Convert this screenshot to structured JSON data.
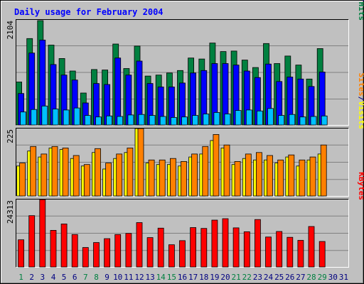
{
  "chart_data": {
    "type": "bar",
    "title": "Daily usage for February 2004",
    "x": [
      "1",
      "2",
      "3",
      "4",
      "5",
      "6",
      "7",
      "8",
      "9",
      "10",
      "11",
      "12",
      "13",
      "14",
      "15",
      "16",
      "17",
      "18",
      "19",
      "20",
      "21",
      "22",
      "23",
      "24",
      "25",
      "26",
      "27",
      "28",
      "29",
      "30",
      "31"
    ],
    "x_colors": [
      "#008040",
      "#000080",
      "#000080",
      "#000080",
      "#000080",
      "#000080",
      "#008040",
      "#008040",
      "#000080",
      "#000080",
      "#000080",
      "#000080",
      "#000080",
      "#008040",
      "#008040",
      "#000080",
      "#000080",
      "#000080",
      "#000080",
      "#000080",
      "#008040",
      "#008040",
      "#000080",
      "#000080",
      "#000080",
      "#000080",
      "#000080",
      "#008040",
      "#008040",
      "#000080",
      "#000080"
    ],
    "panels": [
      {
        "name": "hits-files-pages",
        "ymax": 2104,
        "ymax_label": "2104",
        "legend": [
          {
            "text": "Pages",
            "color": "#00c0ff"
          },
          {
            "text": "/",
            "color": "#000080"
          },
          {
            "text": "Files",
            "color": "#0000ff"
          },
          {
            "text": "/",
            "color": "#000080"
          },
          {
            "text": "Hits",
            "color": "#008040"
          }
        ],
        "series": [
          {
            "name": "Hits",
            "color": "#008040",
            "values": [
              860,
              1730,
              2090,
              1600,
              1330,
              1080,
              640,
              1110,
              1100,
              1620,
              1130,
              1580,
              980,
              1000,
              1040,
              1090,
              1340,
              1320,
              1640,
              1470,
              1480,
              1300,
              1150,
              1630,
              1230,
              1380,
              1200,
              920,
              1530,
              0,
              0
            ]
          },
          {
            "name": "Files",
            "color": "#0000ff",
            "values": [
              630,
              1440,
              1700,
              1210,
              1000,
              900,
              440,
              830,
              810,
              1340,
              1000,
              1280,
              830,
              760,
              760,
              840,
              1040,
              1090,
              1230,
              1230,
              1200,
              1080,
              950,
              1220,
              870,
              960,
              920,
              770,
              1060,
              0,
              0
            ]
          },
          {
            "name": "Pages",
            "color": "#00c0ff",
            "values": [
              260,
              310,
              380,
              320,
              300,
              340,
              190,
              160,
              180,
              170,
              200,
              210,
              190,
              170,
              150,
              160,
              190,
              220,
              250,
              220,
              290,
              300,
              280,
              330,
              190,
              210,
              160,
              170,
              180,
              0,
              0
            ]
          }
        ]
      },
      {
        "name": "visits-sites",
        "ymax": 225,
        "ymax_label": "225",
        "legend": [
          {
            "text": "Sites",
            "color": "#ff8000"
          },
          {
            "text": "/",
            "color": "#000080"
          },
          {
            "text": "Visits",
            "color": "#ffff00"
          }
        ],
        "series": [
          {
            "name": "Visits",
            "color": "#ffff00",
            "values": [
              100,
              150,
              130,
              160,
              155,
              125,
              100,
              145,
              90,
              125,
              145,
              225,
              110,
              105,
              105,
              100,
              130,
              140,
              185,
              160,
              105,
              125,
              120,
              120,
              110,
              130,
              100,
              120,
              140,
              0,
              0
            ]
          },
          {
            "name": "Sites",
            "color": "#ff8000",
            "values": [
              110,
              165,
              140,
              165,
              160,
              135,
              105,
              158,
              110,
              140,
              160,
              258,
              120,
              120,
              125,
              115,
              140,
              165,
              205,
              170,
              115,
              140,
              145,
              135,
              120,
              137,
              120,
              130,
              170,
              0,
              0
            ]
          }
        ]
      },
      {
        "name": "kbytes",
        "ymax": 24313,
        "ymax_label": "24313",
        "legend": [
          {
            "text": "KBytes",
            "color": "#ff0000"
          }
        ],
        "series": [
          {
            "name": "KBytes",
            "color": "#ff0000",
            "values": [
              9800,
              18500,
              24300,
              13200,
              15500,
              11700,
              7000,
              8800,
              10200,
              11700,
              12100,
              16000,
              10600,
              14000,
              8000,
              9500,
              14200,
              13900,
              16900,
              17400,
              14100,
              12700,
              17100,
              10800,
              12800,
              10700,
              9600,
              14600,
              9200,
              0,
              0
            ]
          }
        ]
      }
    ]
  }
}
